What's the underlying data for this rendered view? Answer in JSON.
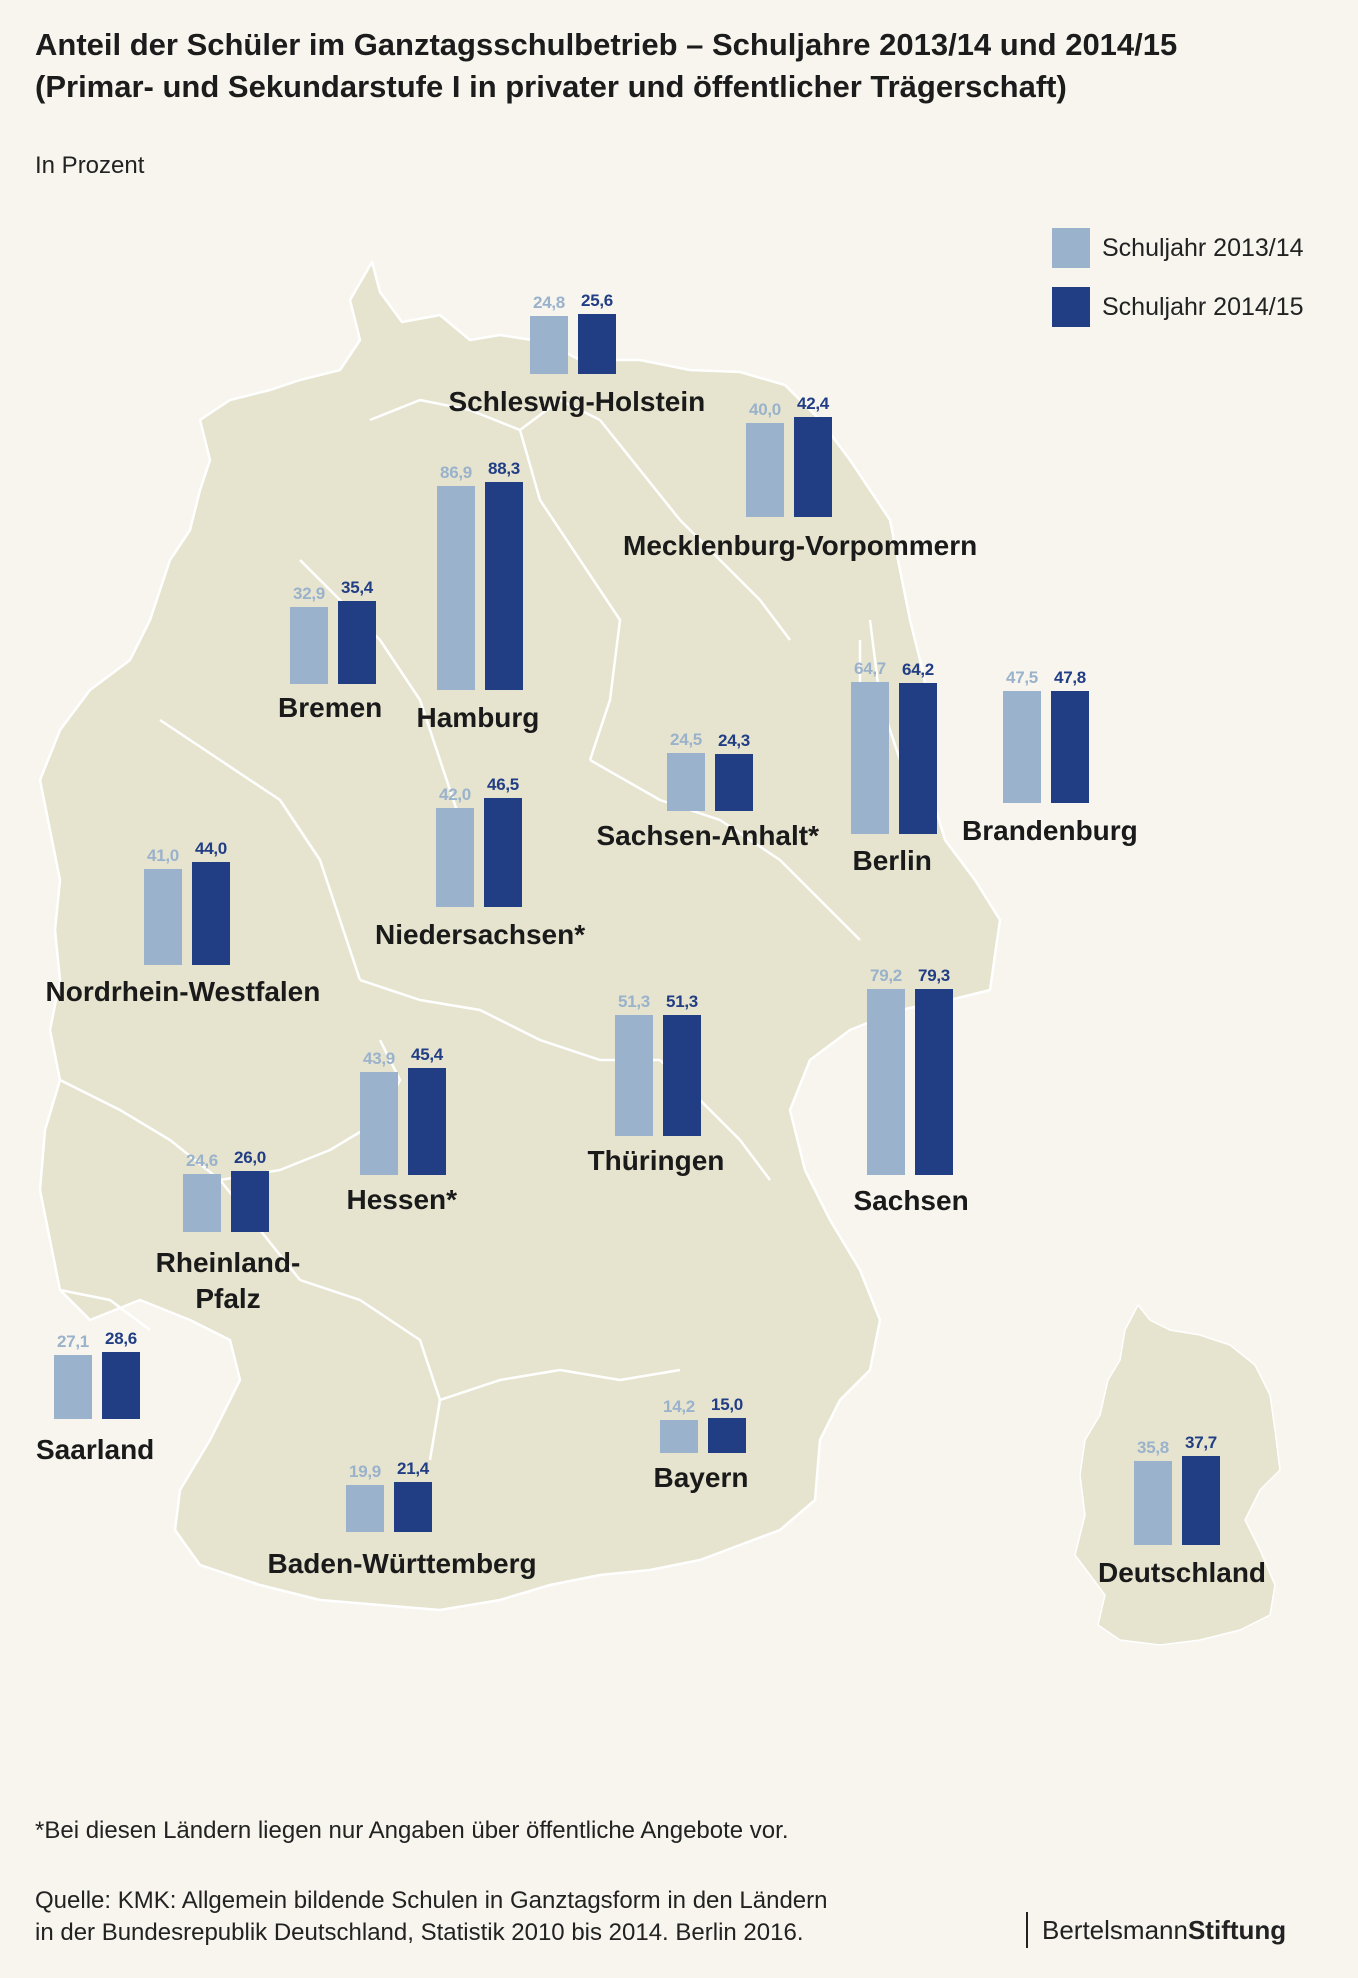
{
  "title_line1": "Anteil der Schüler im Ganztagsschulbetrieb – Schuljahre  2013/14 und 2014/15",
  "title_line2": "(Primar- und Sekundarstufe I in privater und öffentlicher Trägerschaft)",
  "unit": "In Prozent",
  "legend": [
    {
      "label": "Schuljahr 2013/14",
      "color": "#9ab2cb"
    },
    {
      "label": "Schuljahr 2014/15",
      "color": "#213e85"
    }
  ],
  "colors": {
    "map_fill": "#e6e4cf",
    "map_border": "#ffffff",
    "background": "#f7f5ee"
  },
  "chart_data": {
    "type": "bar",
    "series_names": [
      "Schuljahr 2013/14",
      "Schuljahr 2014/15"
    ],
    "regions": [
      {
        "name": "Schleswig-Holstein",
        "v1": 24.8,
        "v2": 25.6,
        "t1": "24,8",
        "t2": "25,6"
      },
      {
        "name": "Mecklenburg-Vorpommern",
        "v1": 40.0,
        "v2": 42.4,
        "t1": "40,0",
        "t2": "42,4"
      },
      {
        "name": "Hamburg",
        "v1": 86.9,
        "v2": 88.3,
        "t1": "86,9",
        "t2": "88,3"
      },
      {
        "name": "Bremen",
        "v1": 32.9,
        "v2": 35.4,
        "t1": "32,9",
        "t2": "35,4"
      },
      {
        "name": "Berlin",
        "v1": 64.7,
        "v2": 64.2,
        "t1": "64,7",
        "t2": "64,2"
      },
      {
        "name": "Brandenburg",
        "v1": 47.5,
        "v2": 47.8,
        "t1": "47,5",
        "t2": "47,8"
      },
      {
        "name": "Sachsen-Anhalt*",
        "v1": 24.5,
        "v2": 24.3,
        "t1": "24,5",
        "t2": "24,3"
      },
      {
        "name": "Niedersachsen*",
        "v1": 42.0,
        "v2": 46.5,
        "t1": "42,0",
        "t2": "46,5"
      },
      {
        "name": "Nordrhein-Westfalen",
        "v1": 41.0,
        "v2": 44.0,
        "t1": "41,0",
        "t2": "44,0"
      },
      {
        "name": "Thüringen",
        "v1": 51.3,
        "v2": 51.3,
        "t1": "51,3",
        "t2": "51,3"
      },
      {
        "name": "Sachsen",
        "v1": 79.2,
        "v2": 79.3,
        "t1": "79,2",
        "t2": "79,3"
      },
      {
        "name": "Hessen*",
        "v1": 43.9,
        "v2": 45.4,
        "t1": "43,9",
        "t2": "45,4"
      },
      {
        "name": "Rheinland-Pfalz",
        "v1": 24.6,
        "v2": 26.0,
        "t1": "24,6",
        "t2": "26,0"
      },
      {
        "name": "Saarland",
        "v1": 27.1,
        "v2": 28.6,
        "t1": "27,1",
        "t2": "28,6"
      },
      {
        "name": "Bayern",
        "v1": 14.2,
        "v2": 15.0,
        "t1": "14,2",
        "t2": "15,0"
      },
      {
        "name": "Baden-Württemberg",
        "v1": 19.9,
        "v2": 21.4,
        "t1": "19,9",
        "t2": "21,4"
      },
      {
        "name": "Deutschland",
        "v1": 35.8,
        "v2": 37.7,
        "t1": "35,8",
        "t2": "37,7"
      }
    ]
  },
  "footnote": "*Bei diesen Ländern liegen nur Angaben über öffentliche Angebote vor.",
  "source_line1": "Quelle: KMK: Allgemein bildende Schulen in Ganztagsform in den Ländern",
  "source_line2": "in der Bundesrepublik Deutschland, Statistik 2010 bis 2014. Berlin 2016.",
  "brand_part1": "Bertelsmann",
  "brand_part2": "Stiftung"
}
